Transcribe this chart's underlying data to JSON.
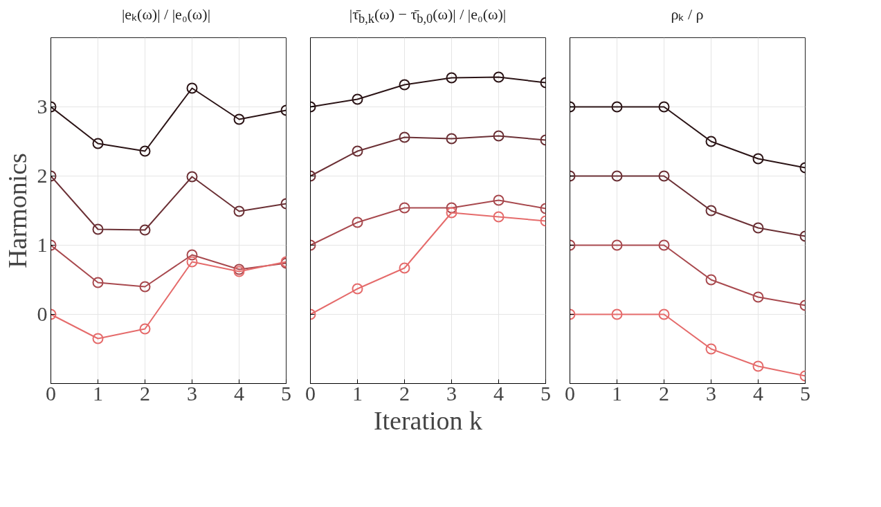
{
  "chart_data": [
    {
      "type": "line",
      "title": "|eₖ(ω)| / |e₀(ω)|",
      "ylabel": "Harmonics",
      "x": [
        0,
        1,
        2,
        3,
        4,
        5
      ],
      "xlim": [
        0,
        5
      ],
      "xticks": [
        0,
        1,
        2,
        3,
        4,
        5
      ],
      "ylim": [
        -1,
        4
      ],
      "yticks": [
        0,
        1,
        2,
        3
      ],
      "grid": true,
      "marker": "circle",
      "line_style": "solid",
      "series": [
        {
          "color": "#2b1416",
          "values": [
            3.0,
            2.47,
            2.36,
            3.27,
            2.82,
            2.95
          ]
        },
        {
          "color": "#6b3035",
          "values": [
            2.0,
            1.23,
            1.22,
            1.99,
            1.49,
            1.6
          ]
        },
        {
          "color": "#a8494e",
          "values": [
            1.0,
            0.46,
            0.4,
            0.86,
            0.65,
            0.74
          ]
        },
        {
          "color": "#e56b6b",
          "values": [
            0.0,
            -0.35,
            -0.21,
            0.76,
            0.62,
            0.76
          ]
        }
      ]
    },
    {
      "type": "line",
      "title": "|τ̄$_{b,k}$(ω) − τ̄$_{b,0}$(ω)| / |e₀(ω)|",
      "xlabel": "Iteration k",
      "x": [
        0,
        1,
        2,
        3,
        4,
        5
      ],
      "xlim": [
        0,
        5
      ],
      "xticks": [
        0,
        1,
        2,
        3,
        4,
        5
      ],
      "ylim": [
        -1,
        4
      ],
      "yticks": [
        0,
        1,
        2,
        3
      ],
      "tick_labels": "x",
      "grid": true,
      "marker": "circle",
      "line_style": "solid",
      "series": [
        {
          "color": "#2b1416",
          "values": [
            3.0,
            3.11,
            3.32,
            3.42,
            3.43,
            3.35
          ]
        },
        {
          "color": "#6b3035",
          "values": [
            2.0,
            2.36,
            2.56,
            2.54,
            2.58,
            2.52
          ]
        },
        {
          "color": "#a8494e",
          "values": [
            1.0,
            1.33,
            1.54,
            1.54,
            1.65,
            1.53
          ]
        },
        {
          "color": "#e56b6b",
          "values": [
            0.0,
            0.37,
            0.67,
            1.47,
            1.41,
            1.35
          ]
        }
      ]
    },
    {
      "type": "line",
      "title": "ρₖ / ρ",
      "x": [
        0,
        1,
        2,
        3,
        4,
        5
      ],
      "xlim": [
        0,
        5
      ],
      "xticks": [
        0,
        1,
        2,
        3,
        4,
        5
      ],
      "ylim": [
        -1,
        4
      ],
      "yticks": [
        0,
        1,
        2,
        3
      ],
      "tick_labels": "x",
      "grid": true,
      "marker": "circle",
      "line_style": "solid",
      "series": [
        {
          "color": "#2b1416",
          "values": [
            3.0,
            3.0,
            3.0,
            2.5,
            2.25,
            2.12
          ]
        },
        {
          "color": "#6b3035",
          "values": [
            2.0,
            2.0,
            2.0,
            1.5,
            1.25,
            1.13
          ]
        },
        {
          "color": "#a8494e",
          "values": [
            1.0,
            1.0,
            1.0,
            0.5,
            0.25,
            0.13
          ]
        },
        {
          "color": "#e56b6b",
          "values": [
            0.0,
            0.0,
            0.0,
            -0.5,
            -0.75,
            -0.89
          ]
        }
      ]
    }
  ]
}
